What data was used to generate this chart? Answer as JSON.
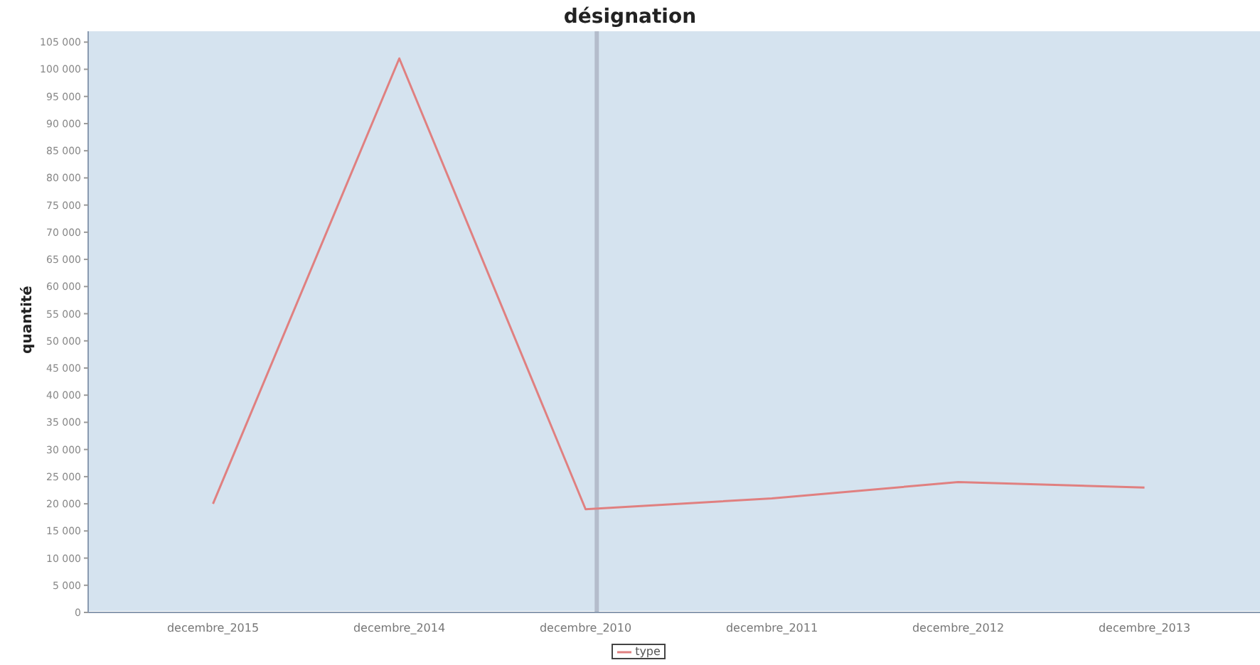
{
  "chart_data": {
    "type": "line",
    "title": "désignation",
    "ylabel": "quantité",
    "categories": [
      "decembre_2015",
      "decembre_2014",
      "decembre_2010",
      "decembre_2011",
      "decembre_2012",
      "decembre_2013"
    ],
    "series": [
      {
        "name": "type",
        "color": "#e08080",
        "values": [
          20000,
          102000,
          19000,
          21000,
          24000,
          23000
        ]
      }
    ],
    "ylim": [
      0,
      107000
    ],
    "yticks": [
      {
        "value": 0,
        "label": "0"
      },
      {
        "value": 5000,
        "label": "5 000"
      },
      {
        "value": 10000,
        "label": "10 000"
      },
      {
        "value": 15000,
        "label": "15 000"
      },
      {
        "value": 20000,
        "label": "20 000"
      },
      {
        "value": 25000,
        "label": "25 000"
      },
      {
        "value": 30000,
        "label": "30 000"
      },
      {
        "value": 35000,
        "label": "35 000"
      },
      {
        "value": 40000,
        "label": "40 000"
      },
      {
        "value": 45000,
        "label": "45 000"
      },
      {
        "value": 50000,
        "label": "50 000"
      },
      {
        "value": 55000,
        "label": "55 000"
      },
      {
        "value": 60000,
        "label": "60 000"
      },
      {
        "value": 65000,
        "label": "65 000"
      },
      {
        "value": 70000,
        "label": "70 000"
      },
      {
        "value": 75000,
        "label": "75 000"
      },
      {
        "value": 80000,
        "label": "80 000"
      },
      {
        "value": 85000,
        "label": "85 000"
      },
      {
        "value": 90000,
        "label": "90 000"
      },
      {
        "value": 95000,
        "label": "95 000"
      },
      {
        "value": 100000,
        "label": "100 000"
      },
      {
        "value": 105000,
        "label": "105 000"
      }
    ],
    "ref_lines": [
      {
        "axis": "x",
        "value": "decembre_2010",
        "color": "#b4bccb"
      }
    ],
    "legend": "bottom",
    "marker": "none",
    "line_style": "solid"
  }
}
